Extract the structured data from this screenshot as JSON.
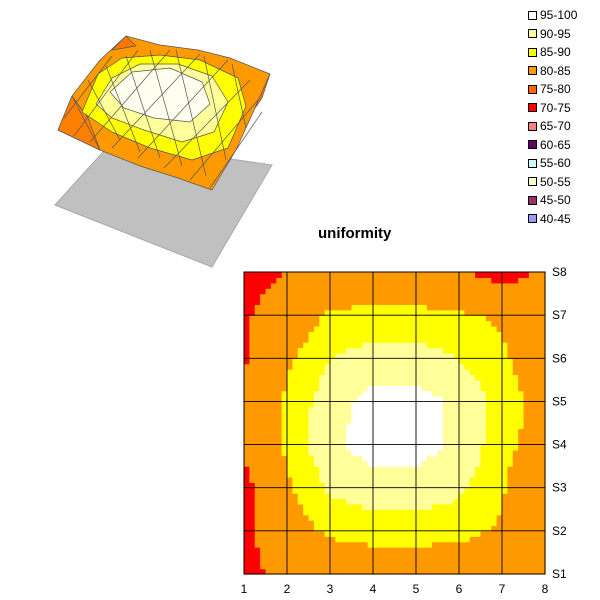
{
  "chart_data": {
    "type": "heatmap",
    "title": "uniformity",
    "x_ticks": [
      "1",
      "2",
      "3",
      "4",
      "5",
      "6",
      "7",
      "8"
    ],
    "y_ticks": [
      "S1",
      "S2",
      "S3",
      "S4",
      "S5",
      "S6",
      "S7",
      "S8"
    ],
    "legend": [
      {
        "label": "95-100",
        "color": "#ffffff"
      },
      {
        "label": "90-95",
        "color": "#ffff99"
      },
      {
        "label": "85-90",
        "color": "#ffff00"
      },
      {
        "label": "80-85",
        "color": "#ff9900"
      },
      {
        "label": "75-80",
        "color": "#ff6600"
      },
      {
        "label": "70-75",
        "color": "#ff0000"
      },
      {
        "label": "65-70",
        "color": "#ff8080"
      },
      {
        "label": "60-65",
        "color": "#660066"
      },
      {
        "label": "55-60",
        "color": "#ccffff"
      },
      {
        "label": "50-55",
        "color": "#ffffcc"
      },
      {
        "label": "45-50",
        "color": "#993366"
      },
      {
        "label": "40-45",
        "color": "#9999ff"
      }
    ],
    "series_rows": [
      "S1",
      "S2",
      "S3",
      "S4",
      "S5",
      "S6",
      "S7",
      "S8"
    ],
    "values": [
      [
        72,
        78,
        80,
        81,
        81,
        80,
        79,
        76
      ],
      [
        73,
        82,
        86,
        87,
        87,
        87,
        84,
        80
      ],
      [
        72,
        84,
        91,
        93,
        93,
        91,
        86,
        74
      ],
      [
        77,
        86,
        94,
        97,
        97,
        94,
        87,
        82
      ],
      [
        79,
        86,
        93,
        97,
        97,
        94,
        88,
        82
      ],
      [
        74,
        84,
        90,
        92,
        92,
        90,
        86,
        80
      ],
      [
        74,
        80,
        86,
        87,
        87,
        86,
        84,
        79
      ],
      [
        72,
        75,
        78,
        79,
        78,
        76,
        72,
        76
      ]
    ],
    "grid": true,
    "legend_position": "top-right"
  }
}
